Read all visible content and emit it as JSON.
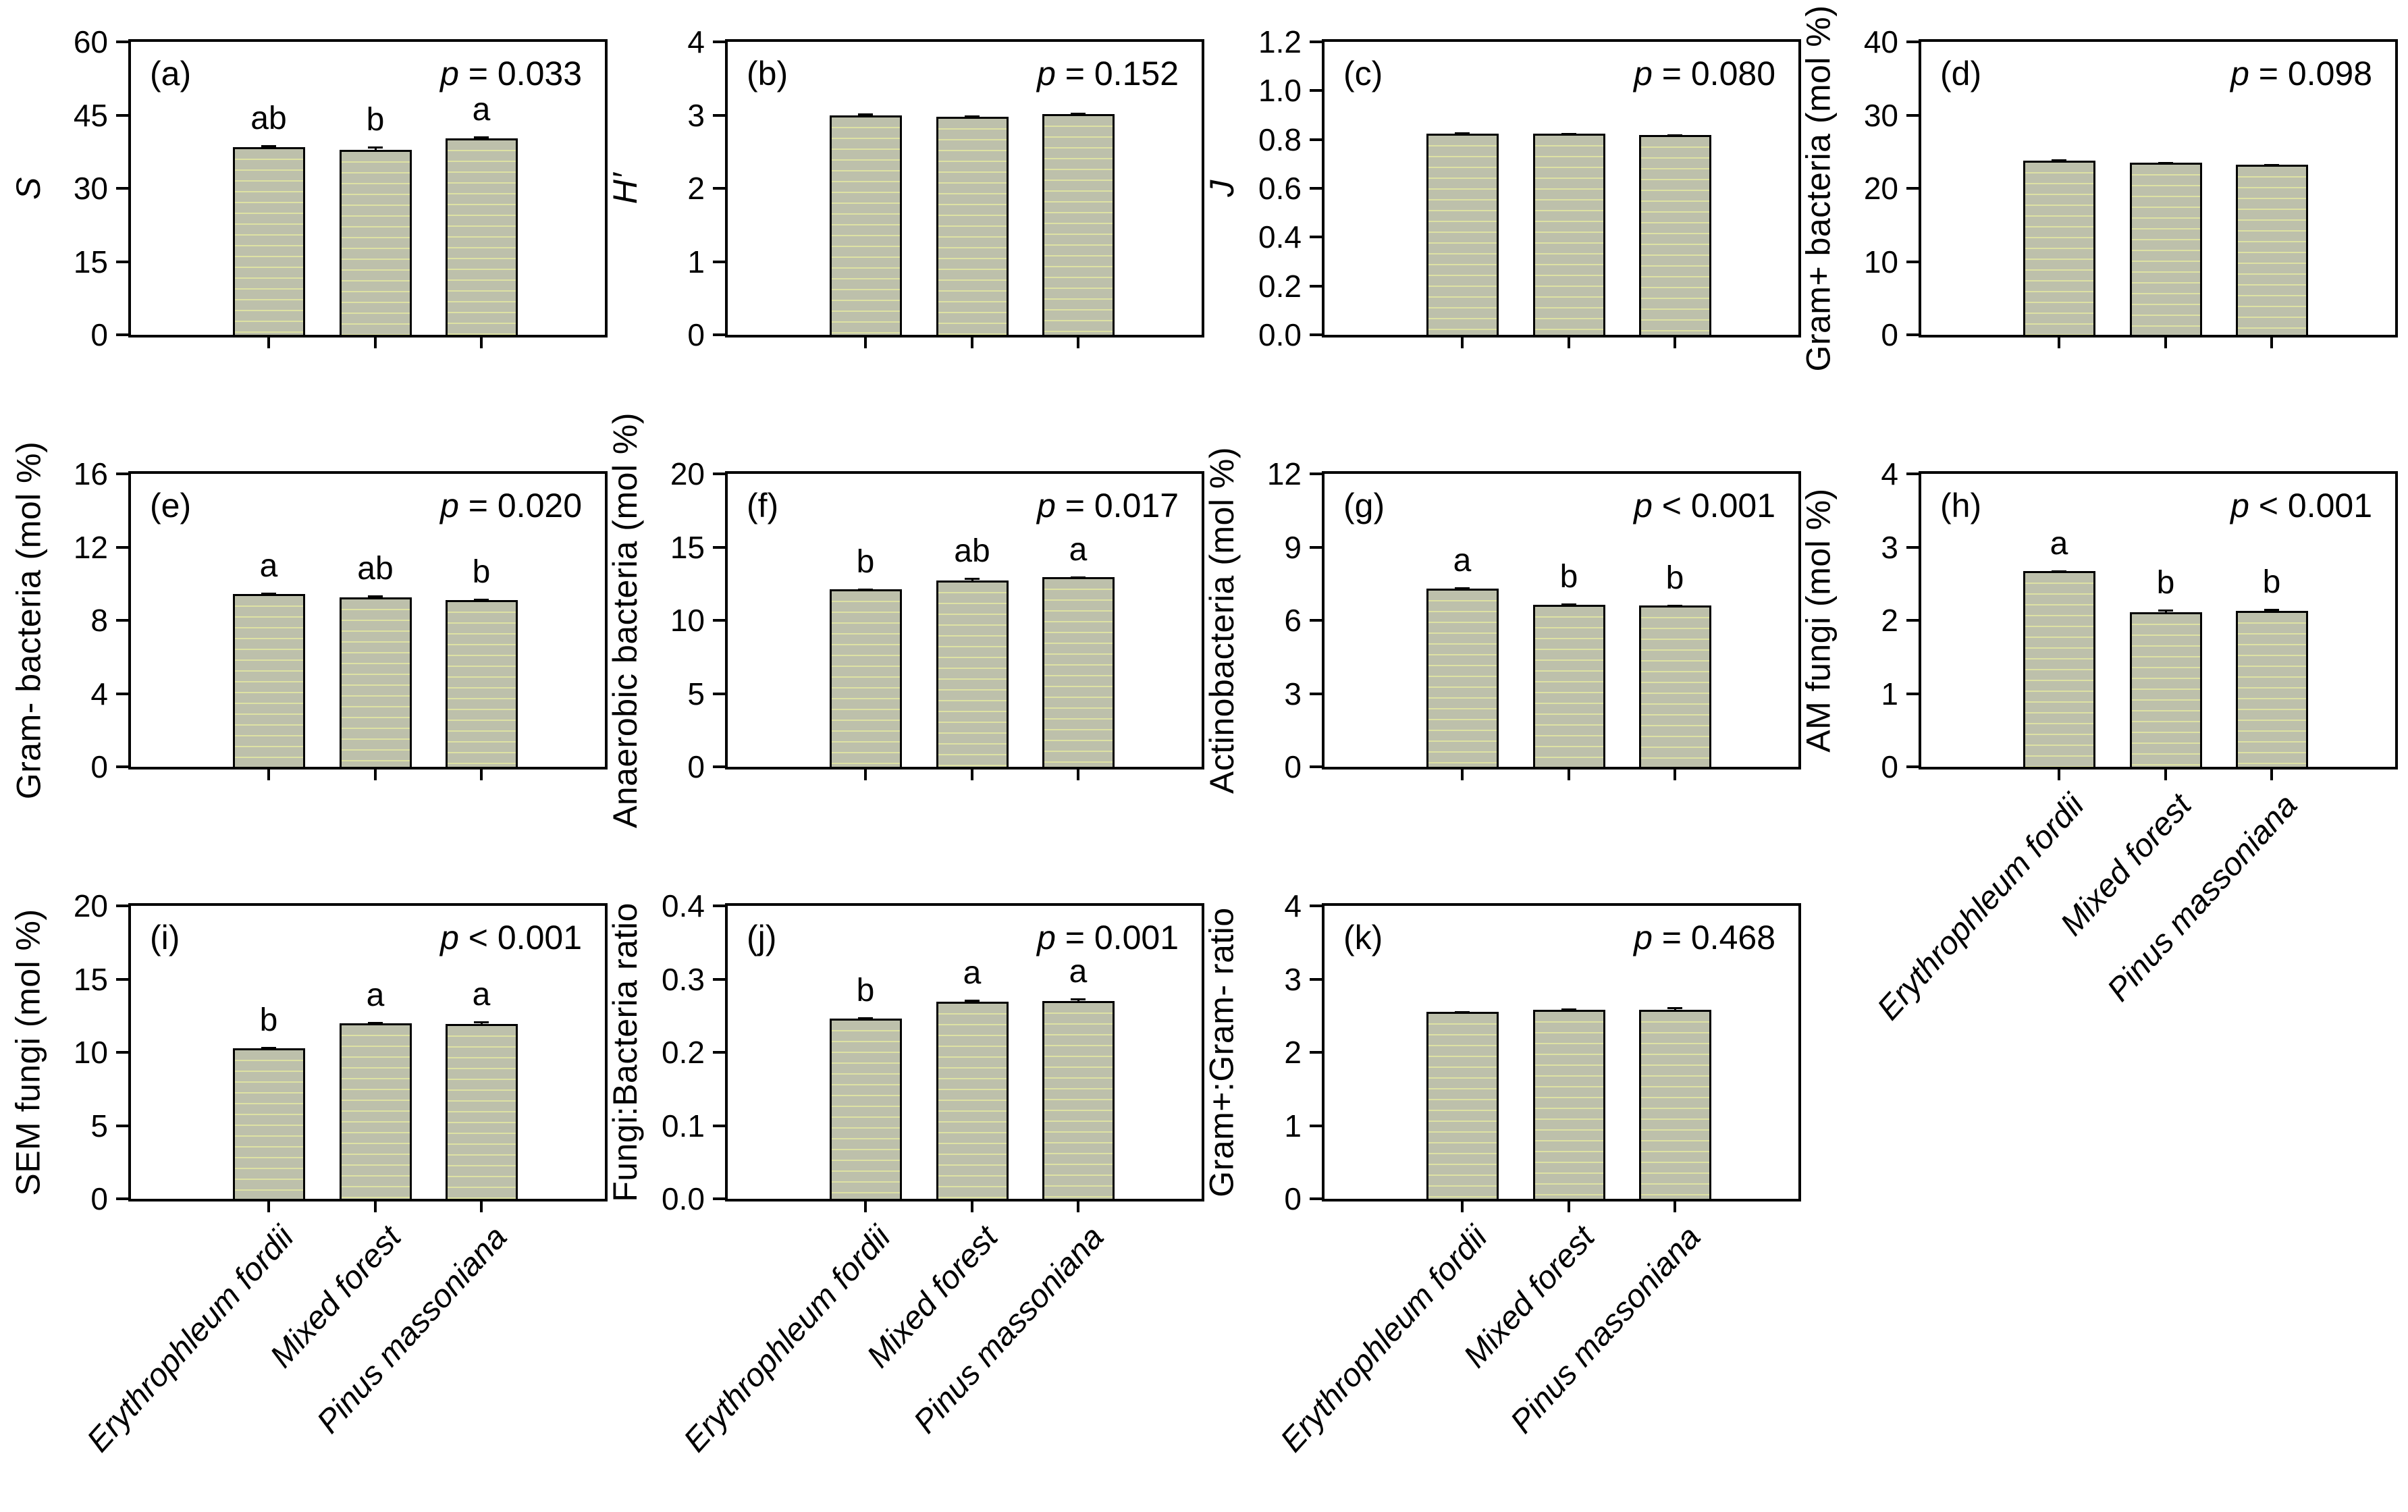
{
  "figure": {
    "background": "#ffffff",
    "axis_color": "#000000",
    "bar_fill": "#bdc0ab",
    "bar_stripe": "#dde1a3",
    "bar_border": "#000000",
    "categories": [
      "Erythrophleum fordii",
      "Mixed forest",
      "Pinus massoniana"
    ]
  },
  "chart_data": [
    {
      "type": "bar",
      "id": "a",
      "panel_label": "(a)",
      "row": 0,
      "col": 0,
      "ylabel": "S",
      "ylabel_italic": true,
      "p_op": "=",
      "p_value": "0.033",
      "ylim": [
        0,
        60
      ],
      "yticks": [
        0,
        15,
        30,
        45,
        60
      ],
      "ydecimals": 0,
      "values": [
        38.5,
        37.9,
        40.3
      ],
      "errors": [
        0.4,
        0.7,
        0.35
      ],
      "letters": [
        "ab",
        "b",
        "a"
      ],
      "show_xlabels": false
    },
    {
      "type": "bar",
      "id": "b",
      "panel_label": "(b)",
      "row": 0,
      "col": 1,
      "ylabel": "H′",
      "ylabel_italic": true,
      "p_op": "=",
      "p_value": "0.152",
      "ylim": [
        0,
        4
      ],
      "yticks": [
        0,
        1,
        2,
        3,
        4
      ],
      "ydecimals": 0,
      "values": [
        3.0,
        2.98,
        3.01
      ],
      "errors": [
        0.02,
        0.02,
        0.02
      ],
      "letters": null,
      "show_xlabels": false
    },
    {
      "type": "bar",
      "id": "c",
      "panel_label": "(c)",
      "row": 0,
      "col": 2,
      "ylabel": "J",
      "ylabel_italic": true,
      "p_op": "=",
      "p_value": "0.080",
      "ylim": [
        0,
        1.2
      ],
      "yticks": [
        0,
        0.2,
        0.4,
        0.6,
        0.8,
        1.0,
        1.2
      ],
      "ydecimals": 1,
      "values": [
        0.825,
        0.823,
        0.818
      ],
      "errors": [
        0.004,
        0.004,
        0.004
      ],
      "letters": null,
      "show_xlabels": false
    },
    {
      "type": "bar",
      "id": "d",
      "panel_label": "(d)",
      "row": 0,
      "col": 3,
      "ylabel": "Gram+ bacteria (mol %)",
      "ylabel_italic": false,
      "p_op": "=",
      "p_value": "0.098",
      "ylim": [
        0,
        40
      ],
      "yticks": [
        0,
        10,
        20,
        30,
        40
      ],
      "ydecimals": 0,
      "values": [
        23.8,
        23.5,
        23.2
      ],
      "errors": [
        0.2,
        0.12,
        0.12
      ],
      "letters": null,
      "show_xlabels": false
    },
    {
      "type": "bar",
      "id": "e",
      "panel_label": "(e)",
      "row": 1,
      "col": 0,
      "ylabel": "Gram- bacteria (mol %)",
      "ylabel_italic": false,
      "p_op": "=",
      "p_value": "0.020",
      "ylim": [
        0,
        16
      ],
      "yticks": [
        0,
        4,
        8,
        12,
        16
      ],
      "ydecimals": 0,
      "values": [
        9.45,
        9.25,
        9.1
      ],
      "errors": [
        0.06,
        0.1,
        0.07
      ],
      "letters": [
        "a",
        "ab",
        "b"
      ],
      "show_xlabels": false
    },
    {
      "type": "bar",
      "id": "f",
      "panel_label": "(f)",
      "row": 1,
      "col": 1,
      "ylabel": "Anaerobic bacteria (mol %)",
      "ylabel_italic": false,
      "p_op": "=",
      "p_value": "0.017",
      "ylim": [
        0,
        20
      ],
      "yticks": [
        0,
        5,
        10,
        15,
        20
      ],
      "ydecimals": 0,
      "values": [
        12.1,
        12.7,
        12.95
      ],
      "errors": [
        0.08,
        0.22,
        0.06
      ],
      "letters": [
        "b",
        "ab",
        "a"
      ],
      "show_xlabels": false
    },
    {
      "type": "bar",
      "id": "g",
      "panel_label": "(g)",
      "row": 1,
      "col": 2,
      "ylabel": "Actinobacteria (mol %)",
      "ylabel_italic": false,
      "p_op": "<",
      "p_value": "0.001",
      "ylim": [
        0,
        12
      ],
      "yticks": [
        0,
        3,
        6,
        9,
        12
      ],
      "ydecimals": 0,
      "values": [
        7.3,
        6.65,
        6.6
      ],
      "errors": [
        0.05,
        0.05,
        0.05
      ],
      "letters": [
        "a",
        "b",
        "b"
      ],
      "show_xlabels": false
    },
    {
      "type": "bar",
      "id": "h",
      "panel_label": "(h)",
      "row": 1,
      "col": 3,
      "ylabel": "AM fungi (mol %)",
      "ylabel_italic": false,
      "p_op": "<",
      "p_value": "0.001",
      "ylim": [
        0,
        4
      ],
      "yticks": [
        0,
        1,
        2,
        3,
        4
      ],
      "ydecimals": 0,
      "values": [
        2.67,
        2.11,
        2.13
      ],
      "errors": [
        0.015,
        0.04,
        0.03
      ],
      "letters": [
        "a",
        "b",
        "b"
      ],
      "show_xlabels": true
    },
    {
      "type": "bar",
      "id": "i",
      "panel_label": "(i)",
      "row": 2,
      "col": 0,
      "ylabel": "SEM fungi (mol %)",
      "ylabel_italic": false,
      "p_op": "<",
      "p_value": "0.001",
      "ylim": [
        0,
        20
      ],
      "yticks": [
        0,
        5,
        10,
        15,
        20
      ],
      "ydecimals": 0,
      "values": [
        10.3,
        11.98,
        11.93
      ],
      "errors": [
        0.07,
        0.1,
        0.18
      ],
      "letters": [
        "b",
        "a",
        "a"
      ],
      "show_xlabels": true
    },
    {
      "type": "bar",
      "id": "j",
      "panel_label": "(j)",
      "row": 2,
      "col": 1,
      "ylabel": "Fungi:Bacteria ratio",
      "ylabel_italic": false,
      "p_op": "=",
      "p_value": "0.001",
      "ylim": [
        0,
        0.4
      ],
      "yticks": [
        0,
        0.1,
        0.2,
        0.3,
        0.4
      ],
      "ydecimals": 1,
      "values": [
        0.246,
        0.269,
        0.27
      ],
      "errors": [
        0.002,
        0.003,
        0.004
      ],
      "letters": [
        "b",
        "a",
        "a"
      ],
      "show_xlabels": true
    },
    {
      "type": "bar",
      "id": "k",
      "panel_label": "(k)",
      "row": 2,
      "col": 2,
      "ylabel": "Gram+:Gram- ratio",
      "ylabel_italic": false,
      "p_op": "=",
      "p_value": "0.468",
      "ylim": [
        0,
        4
      ],
      "yticks": [
        0,
        1,
        2,
        3,
        4
      ],
      "ydecimals": 0,
      "values": [
        2.55,
        2.58,
        2.58
      ],
      "errors": [
        0.015,
        0.02,
        0.04
      ],
      "letters": null,
      "show_xlabels": true
    }
  ]
}
